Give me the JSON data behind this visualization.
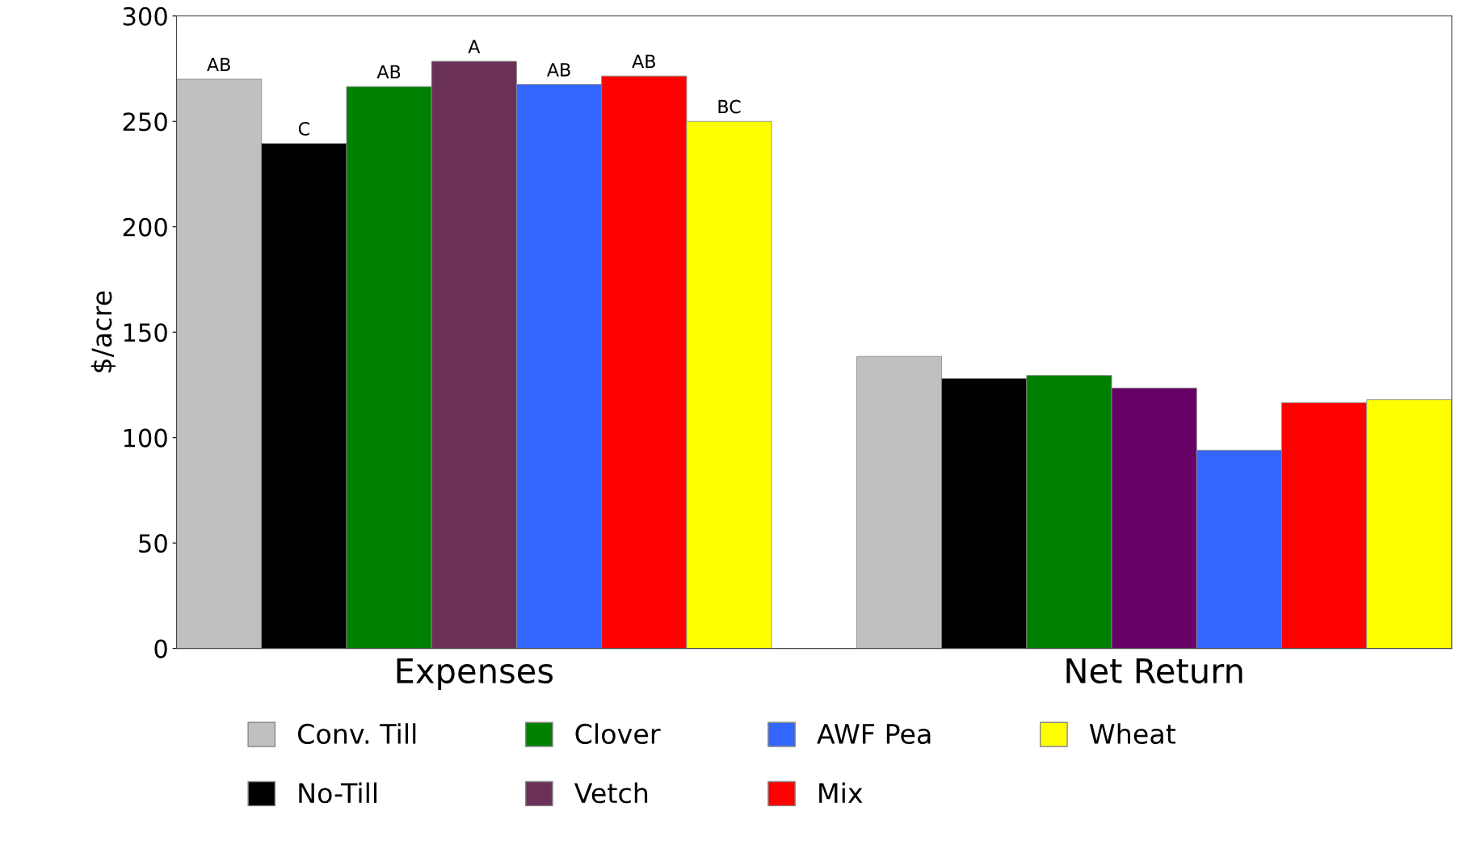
{
  "chart_data": {
    "type": "bar",
    "ylabel": "$/acre",
    "categories": [
      "Expenses",
      "Net Return"
    ],
    "series": [
      {
        "name": "Conv. Till",
        "color": "#c0c0c0",
        "values": [
          270,
          138.5
        ],
        "value_labels": [
          "AB",
          null
        ]
      },
      {
        "name": "No-Till",
        "color": "#000000",
        "values": [
          239.5,
          128
        ],
        "value_labels": [
          "C",
          null
        ]
      },
      {
        "name": "Clover",
        "color": "#008000",
        "values": [
          266.5,
          129.5
        ],
        "value_labels": [
          "AB",
          null
        ]
      },
      {
        "name": "Vetch",
        "color": "#6b3058",
        "colors": [
          "#6b3058",
          "#660066"
        ],
        "values": [
          278.5,
          123.5
        ],
        "value_labels": [
          "A",
          null
        ]
      },
      {
        "name": "AWF Pea",
        "color": "#3366ff",
        "values": [
          267.5,
          94
        ],
        "value_labels": [
          "AB",
          null
        ]
      },
      {
        "name": "Mix",
        "color": "#ff0000",
        "values": [
          271.5,
          116.5
        ],
        "value_labels": [
          "AB",
          null
        ]
      },
      {
        "name": "Wheat",
        "color": "#ffff00",
        "values": [
          250,
          118
        ],
        "value_labels": [
          "BC",
          null
        ]
      }
    ],
    "ylim": [
      0,
      300
    ],
    "yticks": [
      0,
      50,
      100,
      150,
      200,
      250,
      300
    ],
    "grid": false,
    "legend": "bottom"
  }
}
